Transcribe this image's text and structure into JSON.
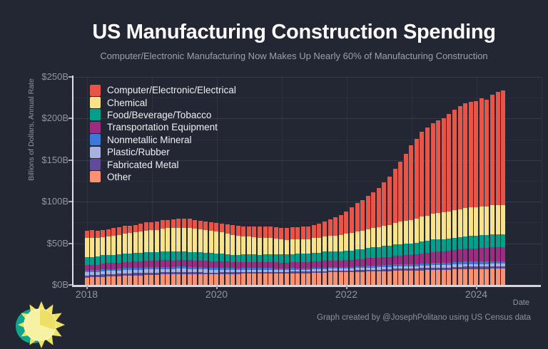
{
  "title": "US Manufacturing Construction Spending",
  "subtitle": "Computer/Electronic Manufacturing Now Makes Up Nearly 60% of Manufacturing Construction",
  "footer": "Graph created by @JosephPolitano using US Census data",
  "colors": {
    "background": "#232733",
    "axis_line": "#dfe1e6",
    "tick_text": "#8f95a1",
    "title_text": "#fdfdfe",
    "subtitle_text": "#9aa1ac",
    "logo_yellow": "#f0e35e",
    "logo_pale_yellow": "#f7f1a3",
    "logo_teal": "#0ca58e"
  },
  "legend": {
    "position": "top-left",
    "items": [
      {
        "label": "Computer/Electronic/Electrical",
        "color": "#e65548"
      },
      {
        "label": "Chemical",
        "color": "#f9e38a"
      },
      {
        "label": "Food/Beverage/Tobacco",
        "color": "#01a08b"
      },
      {
        "label": "Transportation Equipment",
        "color": "#9c2d83"
      },
      {
        "label": "Nonmetallic Mineral",
        "color": "#3c79d8"
      },
      {
        "label": "Plastic/Rubber",
        "color": "#a9b1e1"
      },
      {
        "label": "Fabricated Metal",
        "color": "#5f4b9b"
      },
      {
        "label": "Other",
        "color": "#f89273"
      }
    ]
  },
  "chart_data": {
    "type": "bar",
    "stacked": true,
    "stack_order": "bottom-to-top",
    "title": "US Manufacturing Construction Spending",
    "xlabel": "Date",
    "ylabel": "Billions of Dollars, Annual Rate",
    "ylim": [
      0,
      250
    ],
    "y_tick_values": [
      0,
      50,
      100,
      150,
      200,
      250
    ],
    "y_ticks": [
      "$0B",
      "$50B",
      "$100B",
      "$150B",
      "$200B",
      "$250B"
    ],
    "x_tick_labels": [
      "2018",
      "2020",
      "2022",
      "2024"
    ],
    "grid": "major solid + minor dotted horizontal, faint vertical per year",
    "unit": "billions of US dollars, seasonally adjusted annual rate",
    "x": [
      "2018-01",
      "2018-02",
      "2018-03",
      "2018-04",
      "2018-05",
      "2018-06",
      "2018-07",
      "2018-08",
      "2018-09",
      "2018-10",
      "2018-11",
      "2018-12",
      "2019-01",
      "2019-02",
      "2019-03",
      "2019-04",
      "2019-05",
      "2019-06",
      "2019-07",
      "2019-08",
      "2019-09",
      "2019-10",
      "2019-11",
      "2019-12",
      "2020-01",
      "2020-02",
      "2020-03",
      "2020-04",
      "2020-05",
      "2020-06",
      "2020-07",
      "2020-08",
      "2020-09",
      "2020-10",
      "2020-11",
      "2020-12",
      "2021-01",
      "2021-02",
      "2021-03",
      "2021-04",
      "2021-05",
      "2021-06",
      "2021-07",
      "2021-08",
      "2021-09",
      "2021-10",
      "2021-11",
      "2021-12",
      "2022-01",
      "2022-02",
      "2022-03",
      "2022-04",
      "2022-05",
      "2022-06",
      "2022-07",
      "2022-08",
      "2022-09",
      "2022-10",
      "2022-11",
      "2022-12",
      "2023-01",
      "2023-02",
      "2023-03",
      "2023-04",
      "2023-05",
      "2023-06",
      "2023-07",
      "2023-08",
      "2023-09",
      "2023-10",
      "2023-11",
      "2023-12",
      "2024-01",
      "2024-02",
      "2024-03",
      "2024-04",
      "2024-05",
      "2024-06"
    ],
    "series": [
      {
        "name": "Other",
        "color": "#f89273",
        "values": [
          8.5,
          9,
          9,
          9.5,
          10,
          10,
          10.5,
          11,
          11,
          11.5,
          11.5,
          12,
          12,
          12,
          12.5,
          12.5,
          12.5,
          13,
          13,
          13,
          13,
          13,
          12.5,
          12.5,
          12.5,
          13,
          13,
          13,
          13,
          13.5,
          13.5,
          13.5,
          13.5,
          13.5,
          13.5,
          13.5,
          13.5,
          13.5,
          14,
          14,
          14,
          14,
          14.5,
          14.5,
          14.5,
          15,
          15,
          15,
          15,
          15,
          15.5,
          15.5,
          16,
          16,
          16,
          16.5,
          16.5,
          17,
          17,
          17,
          17,
          17,
          17.5,
          17.5,
          18,
          18,
          18,
          18,
          18.5,
          18.5,
          19,
          19,
          19,
          19,
          19,
          19.5,
          19.5,
          19.5
        ]
      },
      {
        "name": "Fabricated Metal",
        "color": "#5f4b9b",
        "values": [
          2.8,
          2.8,
          2.8,
          2.9,
          2.9,
          2.9,
          2.9,
          2.9,
          2.8,
          2.8,
          2.8,
          2.8,
          2.7,
          2.7,
          2.6,
          2.6,
          2.5,
          2.5,
          2.5,
          2.4,
          2.4,
          2.4,
          2.4,
          2.4,
          2.3,
          2.2,
          2.2,
          2.1,
          2.1,
          2,
          2,
          2,
          2,
          2,
          2,
          2,
          1.9,
          1.8,
          1.8,
          1.8,
          1.8,
          1.8,
          1.9,
          1.9,
          1.9,
          2,
          2,
          2,
          2.1,
          2.1,
          2.2,
          2.2,
          2.2,
          2.3,
          2.3,
          2.3,
          2.4,
          2.4,
          2.4,
          2.5,
          2.5,
          2.6,
          2.6,
          2.7,
          2.7,
          2.8,
          2.8,
          2.8,
          2.9,
          2.9,
          2.9,
          3,
          3,
          3,
          3,
          3,
          3,
          3
        ]
      },
      {
        "name": "Plastic/Rubber",
        "color": "#a9b1e1",
        "values": [
          3.8,
          3.8,
          3.8,
          3.9,
          3.9,
          3.9,
          3.9,
          4,
          4,
          4,
          3.9,
          3.9,
          4,
          4,
          4,
          4,
          4,
          3.9,
          3.9,
          3.8,
          3.7,
          3.6,
          3.5,
          3.4,
          3.2,
          3.1,
          3,
          2.9,
          2.8,
          2.8,
          2.8,
          2.8,
          2.7,
          2.7,
          2.7,
          2.6,
          2.4,
          2.3,
          2.3,
          2.2,
          2.2,
          2.2,
          2.2,
          2.3,
          2.3,
          2.3,
          2.4,
          2.4,
          2.5,
          2.5,
          2.5,
          2.6,
          2.6,
          2.6,
          2.7,
          2.7,
          2.8,
          2.8,
          2.8,
          2.8,
          2.9,
          2.9,
          3,
          3,
          3,
          3,
          3,
          3,
          3,
          3,
          3,
          3,
          3,
          3,
          3,
          3,
          3,
          3
        ]
      },
      {
        "name": "Nonmetallic Mineral",
        "color": "#3c79d8",
        "values": [
          2.2,
          2.2,
          2.2,
          2.3,
          2.3,
          2.3,
          2.3,
          2.4,
          2.4,
          2.4,
          2.4,
          2.3,
          2.5,
          2.5,
          2.5,
          2.5,
          2.5,
          2.5,
          2.5,
          2.5,
          2.4,
          2.4,
          2.4,
          2.3,
          2.3,
          2.2,
          2.2,
          2.2,
          2.2,
          2.2,
          2.1,
          2.1,
          2.1,
          2.1,
          2.1,
          2,
          2,
          2,
          2,
          2,
          2,
          2,
          2,
          2.1,
          2.1,
          2.1,
          2.1,
          2.1,
          2.2,
          2.2,
          2.2,
          2.3,
          2.3,
          2.3,
          2.4,
          2.4,
          2.4,
          2.5,
          2.5,
          2.5,
          2.6,
          2.6,
          2.7,
          2.7,
          2.8,
          2.8,
          2.9,
          2.9,
          2.9,
          3,
          3,
          3,
          3,
          3,
          3,
          3,
          3,
          3
        ]
      },
      {
        "name": "Transportation Equipment",
        "color": "#9c2d83",
        "values": [
          6.5,
          6.5,
          6.5,
          7,
          7,
          7,
          7,
          7.5,
          7.5,
          7.5,
          8,
          8,
          8,
          8,
          8,
          8,
          8,
          8,
          8,
          8,
          8,
          8,
          8,
          8,
          8,
          7.5,
          7.5,
          7,
          7,
          7,
          7,
          7,
          7,
          7,
          7,
          7,
          7,
          7,
          7,
          7.5,
          7.5,
          7.5,
          7.5,
          7.5,
          8,
          8,
          8,
          8,
          8,
          8,
          8.5,
          8.5,
          9,
          9,
          9,
          9.5,
          9.5,
          10,
          10.5,
          11,
          11,
          11.5,
          12,
          12.5,
          13,
          13.5,
          13.5,
          14,
          14.5,
          15,
          15.5,
          16,
          16,
          16.5,
          16.5,
          17,
          17,
          17
        ]
      },
      {
        "name": "Food/Beverage/Tobacco",
        "color": "#01a08b",
        "values": [
          9.5,
          9.5,
          9.5,
          10,
          10,
          10,
          10,
          10,
          10,
          10,
          10,
          10,
          10,
          10,
          10.5,
          10.5,
          10.5,
          10,
          10,
          10,
          10,
          10,
          10,
          10,
          9.5,
          9.5,
          9,
          9,
          9,
          9,
          9,
          9,
          9,
          9.5,
          9.5,
          9.5,
          10,
          10,
          10,
          10,
          10.5,
          10.5,
          10.5,
          10.5,
          11,
          11,
          11,
          11,
          11,
          11.5,
          12,
          12,
          12.5,
          13,
          13,
          13.5,
          13.5,
          14,
          14,
          14,
          14,
          14,
          14.5,
          14.5,
          15,
          15,
          15,
          15,
          15,
          15,
          15,
          15,
          15,
          15,
          15.5,
          15.5,
          15.5,
          15.5
        ]
      },
      {
        "name": "Chemical",
        "color": "#f9e38a",
        "values": [
          23,
          23,
          22.5,
          22,
          22.5,
          23,
          23.5,
          24,
          24.5,
          25,
          25.5,
          26,
          26.5,
          27,
          27.5,
          28,
          28.5,
          29,
          29,
          28.5,
          28,
          27.5,
          27,
          26.5,
          26,
          25.5,
          25,
          24,
          23,
          22,
          21.5,
          21,
          20.5,
          20,
          19.5,
          19,
          18,
          17.5,
          17.5,
          17,
          17,
          17,
          17.5,
          17.5,
          18,
          18.5,
          19,
          19.5,
          20.5,
          21,
          21.5,
          22,
          22.5,
          23,
          24,
          24.5,
          25,
          26,
          27,
          27.5,
          28,
          29,
          30,
          30.5,
          31,
          31.5,
          32,
          32.5,
          33,
          33.5,
          34,
          34,
          34,
          34.5,
          34.5,
          35,
          35,
          35
        ]
      },
      {
        "name": "Computer/Electronic/Electrical",
        "color": "#e65548",
        "values": [
          9,
          9.5,
          9,
          8.5,
          8.5,
          9,
          9,
          9.5,
          9,
          9,
          9.5,
          10,
          10,
          10,
          10.5,
          10,
          10,
          10.5,
          11,
          11,
          10.5,
          10,
          10,
          10,
          10.5,
          11,
          11,
          11.5,
          12,
          12,
          12.5,
          12.5,
          13,
          13,
          13.5,
          14,
          14,
          14,
          14.5,
          15,
          15,
          15.5,
          16,
          17,
          18,
          19.5,
          21.5,
          23.5,
          27,
          31,
          34,
          37,
          40,
          43,
          47,
          52,
          58,
          65,
          72,
          80,
          90,
          96,
          102,
          106,
          109,
          111,
          113,
          117,
          121,
          124,
          126,
          127,
          128,
          130,
          128,
          133,
          136,
          137.5
        ]
      }
    ]
  }
}
